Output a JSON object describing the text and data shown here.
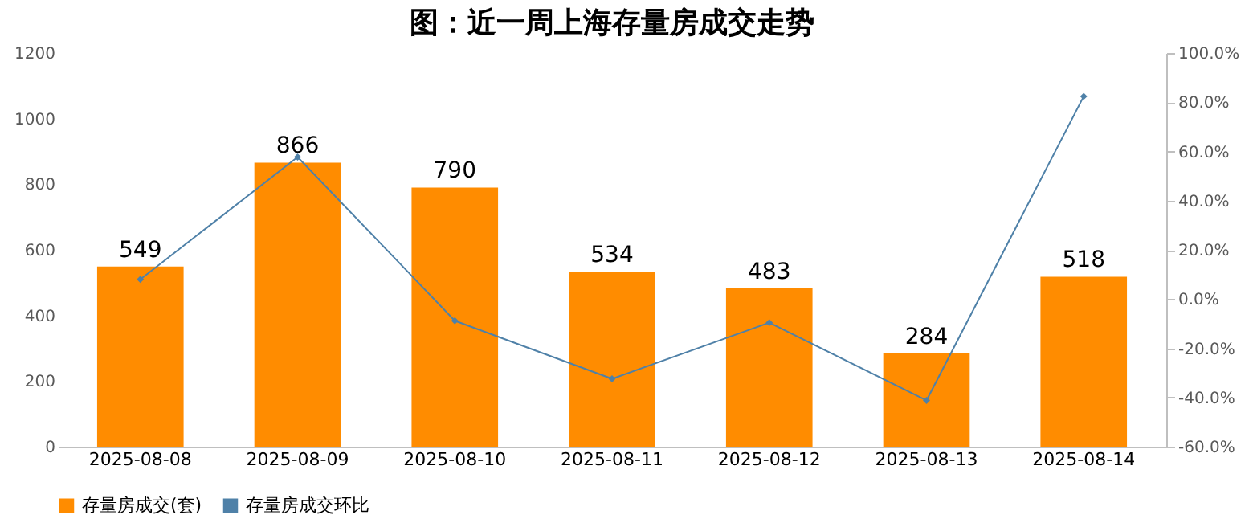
{
  "chart_data": {
    "type": "bar",
    "title": "图：近一周上海存量房成交走势",
    "categories": [
      "2025-08-08",
      "2025-08-09",
      "2025-08-10",
      "2025-08-11",
      "2025-08-12",
      "2025-08-13",
      "2025-08-14"
    ],
    "series": [
      {
        "name": "存量房成交(套)",
        "color": "#ff8c00",
        "values": [
          549,
          866,
          790,
          534,
          483,
          284,
          518
        ],
        "value_labels": [
          "549",
          "866",
          "790",
          "534",
          "483",
          "284",
          "518"
        ]
      },
      {
        "name": "存量房成交环比",
        "type": "line",
        "axis": "y2",
        "color": "#4f81a8",
        "marker": "diamond",
        "values": [
          8,
          57.7,
          -8.8,
          -32.4,
          -9.6,
          -41.2,
          82.4
        ]
      }
    ],
    "ylim": [
      0,
      1200
    ],
    "yticks": [
      0,
      200,
      400,
      600,
      800,
      1000,
      1200
    ],
    "y2lim": [
      -60,
      100
    ],
    "y2ticks": [
      {
        "value": -60,
        "label": "-60.0%"
      },
      {
        "value": -40,
        "label": "-40.0%"
      },
      {
        "value": -20,
        "label": "-20.0%"
      },
      {
        "value": 0,
        "label": "0.0%"
      },
      {
        "value": 20,
        "label": "20.0%"
      },
      {
        "value": 40,
        "label": "40.0%"
      },
      {
        "value": 60,
        "label": "60.0%"
      },
      {
        "value": 80,
        "label": "80.0%"
      },
      {
        "value": 100,
        "label": "100.0%"
      }
    ],
    "legend": "bottom",
    "grid": false
  }
}
